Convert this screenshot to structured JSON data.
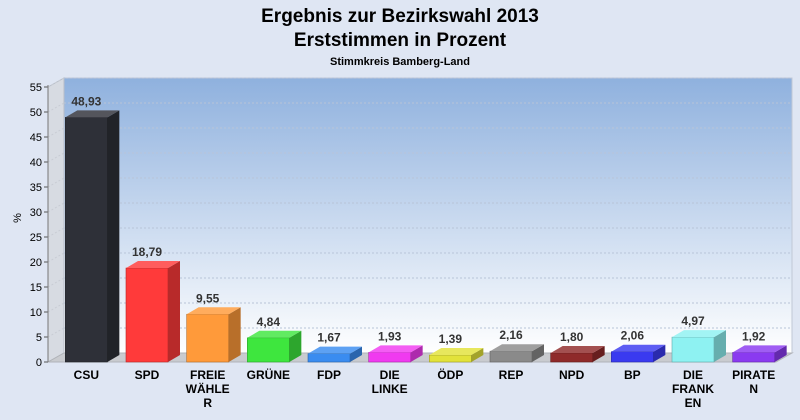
{
  "chart_data": {
    "type": "bar",
    "title": "Ergebnis zur Bezirkswahl 2013",
    "subtitle": "Erststimmen in Prozent",
    "caption": "Stimmkreis Bamberg-Land",
    "ylabel": "%",
    "xlabel": "",
    "ylim": [
      0,
      55
    ],
    "yticks": [
      0,
      5,
      10,
      15,
      20,
      25,
      30,
      35,
      40,
      45,
      50,
      55
    ],
    "grid": true,
    "legend": "none",
    "categories": [
      [
        "CSU"
      ],
      [
        "SPD"
      ],
      [
        "FREIE",
        "WÄHLE",
        "R"
      ],
      [
        "GRÜNE"
      ],
      [
        "FDP"
      ],
      [
        "DIE",
        "LINKE"
      ],
      [
        "ÖDP"
      ],
      [
        "REP"
      ],
      [
        "NPD"
      ],
      [
        "BP"
      ],
      [
        "DIE",
        "FRANK",
        "EN"
      ],
      [
        "PIRATE",
        "N"
      ]
    ],
    "values": [
      48.93,
      18.79,
      9.55,
      4.84,
      1.67,
      1.93,
      1.39,
      2.16,
      1.8,
      2.06,
      4.97,
      1.92
    ],
    "value_labels": [
      "48,93",
      "18,79",
      "9,55",
      "4,84",
      "1,67",
      "1,93",
      "1,39",
      "2,16",
      "1,80",
      "2,06",
      "4,97",
      "1,92"
    ],
    "colors": [
      "#2e3038",
      "#ff3a3a",
      "#ff9a3a",
      "#3ee63e",
      "#3a8cf0",
      "#f03af0",
      "#e2e23a",
      "#8a8a8a",
      "#8f2a2a",
      "#3a3af0",
      "#8ef2f2",
      "#8a3af0"
    ]
  }
}
